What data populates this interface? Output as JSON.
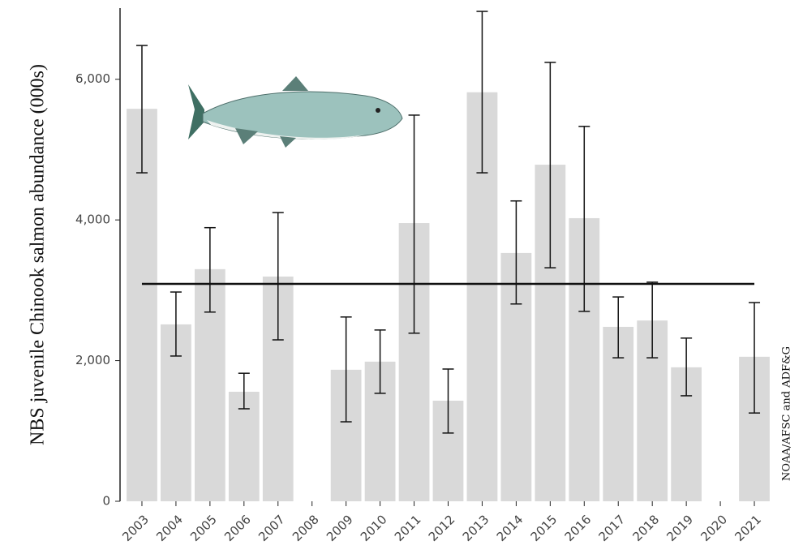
{
  "chart_data": {
    "type": "bar",
    "y_label": "NBS juvenile Chinook salmon abundance (000s)",
    "annotation": "NOAA/AFSC and ADF&G",
    "categories": [
      "2003",
      "2004",
      "2005",
      "2006",
      "2007",
      "2008",
      "2009",
      "2010",
      "2011",
      "2012",
      "2013",
      "2014",
      "2015",
      "2016",
      "2017",
      "2018",
      "2019",
      "2020",
      "2021"
    ],
    "values": [
      5580,
      2515,
      3300,
      1557,
      3195,
      null,
      1870,
      1985,
      3955,
      1430,
      5815,
      3530,
      4785,
      4025,
      2480,
      2570,
      1905,
      null,
      2055
    ],
    "error_low": [
      4670,
      2065,
      2690,
      1315,
      2295,
      null,
      1130,
      1535,
      2390,
      970,
      4670,
      2805,
      3320,
      2700,
      2040,
      2040,
      1500,
      null,
      1255
    ],
    "error_high": [
      6480,
      2975,
      3890,
      1820,
      4105,
      null,
      2620,
      2435,
      5490,
      1880,
      6965,
      4270,
      6240,
      5330,
      2905,
      3115,
      2320,
      null,
      2825
    ],
    "mean": 3090,
    "color": "#d9d9d9",
    "ylim": [
      0,
      7000
    ],
    "yticks": [
      0,
      {
        "value": 2000,
        "label": "2,000"
      },
      {
        "value": 4000,
        "label": "4,000"
      },
      {
        "value": 6000,
        "label": "6,000"
      }
    ]
  }
}
